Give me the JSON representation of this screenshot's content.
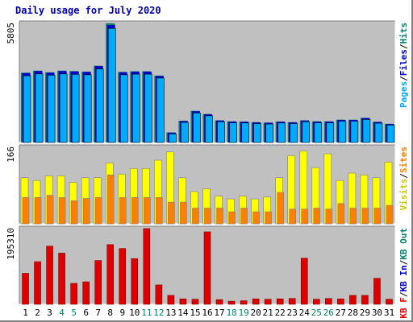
{
  "title": "Daily usage for July 2020",
  "chart_data": [
    {
      "type": "bar",
      "panel": "top",
      "ymax_label": "5805",
      "ylim": [
        0,
        5805
      ],
      "categories": [
        "1",
        "2",
        "3",
        "4",
        "5",
        "6",
        "7",
        "8",
        "9",
        "10",
        "11",
        "12",
        "13",
        "14",
        "15",
        "16",
        "17",
        "18",
        "19",
        "20",
        "21",
        "22",
        "23",
        "24",
        "25",
        "26",
        "27",
        "28",
        "29",
        "30",
        "31"
      ],
      "weekend_days": [
        "4",
        "5",
        "11",
        "12",
        "18",
        "19",
        "25",
        "26"
      ],
      "legend": [
        {
          "text": "Pages",
          "color": "#00aaff"
        },
        {
          "text": "/",
          "color": "#000000"
        },
        {
          "text": "Files",
          "color": "#0000cc"
        },
        {
          "text": "/",
          "color": "#000000"
        },
        {
          "text": "Hits",
          "color": "#00806a"
        }
      ],
      "series": [
        {
          "name": "Hits",
          "color": "#00806a",
          "values": [
            3400,
            3500,
            3420,
            3500,
            3480,
            3450,
            3740,
            5805,
            3440,
            3470,
            3470,
            3260,
            490,
            1060,
            1540,
            1390,
            1080,
            1030,
            1020,
            990,
            970,
            1020,
            990,
            1080,
            1030,
            1030,
            1110,
            1110,
            1200,
            1010,
            910
          ]
        },
        {
          "name": "Files",
          "color": "#0000cc",
          "values": [
            3380,
            3480,
            3400,
            3480,
            3460,
            3440,
            3720,
            5720,
            3420,
            3450,
            3450,
            3240,
            480,
            1040,
            1520,
            1370,
            1070,
            1020,
            1010,
            980,
            960,
            1010,
            980,
            1070,
            1020,
            1020,
            1100,
            1100,
            1190,
            1000,
            900
          ]
        },
        {
          "name": "Pages",
          "color": "#00aaff",
          "values": [
            3250,
            3340,
            3280,
            3340,
            3320,
            3300,
            3580,
            5560,
            3300,
            3330,
            3330,
            3140,
            420,
            980,
            1440,
            1300,
            1010,
            960,
            950,
            920,
            900,
            950,
            920,
            1010,
            960,
            960,
            1040,
            1040,
            1120,
            940,
            850
          ]
        }
      ]
    },
    {
      "type": "bar",
      "panel": "middle",
      "ymax_label": "166",
      "ylim": [
        0,
        166
      ],
      "legend": [
        {
          "text": "Visits",
          "color": "#c8c800"
        },
        {
          "text": "/",
          "color": "#000000"
        },
        {
          "text": "Sites",
          "color": "#ff8000"
        }
      ],
      "series": [
        {
          "name": "Visits",
          "color": "#ffff00",
          "values": [
            100,
            94,
            104,
            104,
            90,
            100,
            100,
            132,
            108,
            120,
            120,
            138,
            156,
            100,
            70,
            76,
            60,
            54,
            60,
            54,
            58,
            100,
            148,
            158,
            122,
            152,
            94,
            110,
            106,
            100,
            134
          ]
        },
        {
          "name": "Sites",
          "color": "#ff8000",
          "values": [
            57,
            57,
            62,
            57,
            50,
            55,
            57,
            106,
            57,
            57,
            57,
            57,
            47,
            47,
            34,
            34,
            34,
            26,
            34,
            26,
            26,
            68,
            32,
            32,
            34,
            32,
            44,
            34,
            34,
            34,
            40
          ]
        }
      ]
    },
    {
      "type": "bar",
      "panel": "bottom",
      "ymax_label": "195310",
      "ylim": [
        0,
        195310
      ],
      "legend": [
        {
          "text": "KB F",
          "color": "#dd0000"
        },
        {
          "text": "/",
          "color": "#000000"
        },
        {
          "text": "KB In",
          "color": "#0000cc"
        },
        {
          "text": "/",
          "color": "#000000"
        },
        {
          "text": "KB Out",
          "color": "#00806a"
        }
      ],
      "series": [
        {
          "name": "KB F",
          "color": "#dd0000",
          "values": [
            80000,
            110000,
            150000,
            132000,
            54000,
            58000,
            113000,
            154000,
            144000,
            118000,
            195310,
            50000,
            23000,
            14000,
            13000,
            187000,
            12000,
            8000,
            9000,
            14000,
            13000,
            14000,
            15000,
            119000,
            13000,
            15000,
            14000,
            23000,
            23000,
            67000,
            13000
          ]
        }
      ]
    }
  ]
}
